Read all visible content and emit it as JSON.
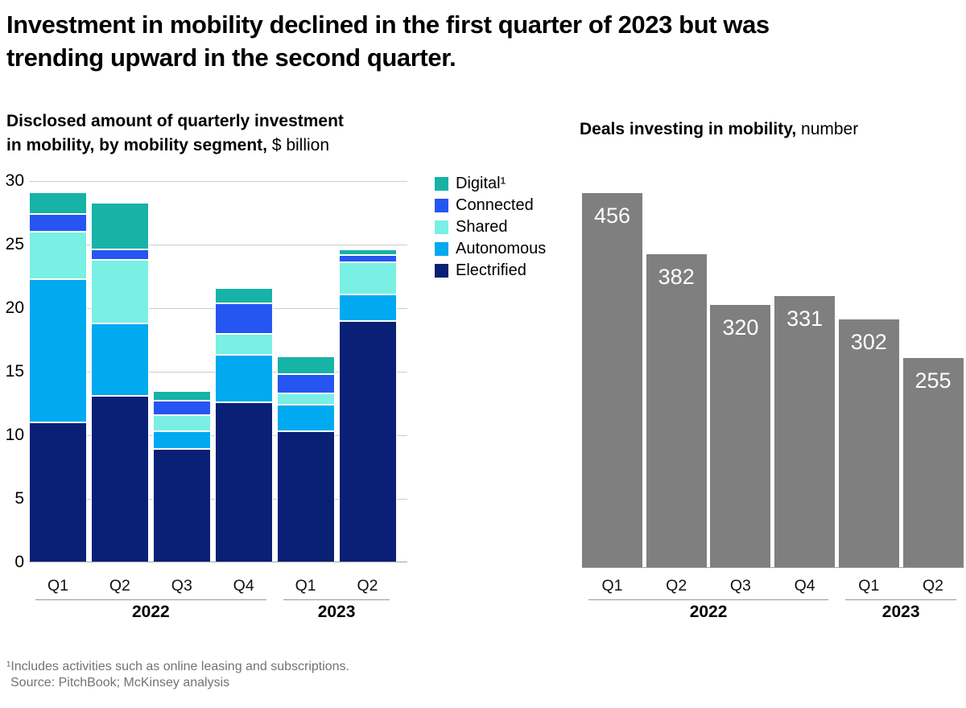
{
  "page": {
    "title_lines": [
      "Investment in mobility declined in the first quarter of 2023 but was",
      "trending upward in the second quarter."
    ],
    "footnote": "¹Includes activities such as online leasing and subscriptions.",
    "source": "Source: PitchBook; McKinsey analysis"
  },
  "chart_data": [
    {
      "type": "stacked-bar",
      "title_lines": [
        "Disclosed amount of quarterly investment",
        "in mobility, by mobility segment,"
      ],
      "unit_label": "$ billion",
      "categories": [
        "Q1",
        "Q2",
        "Q3",
        "Q4",
        "Q1",
        "Q2"
      ],
      "year_groups": [
        {
          "label": "2022",
          "span": [
            0,
            3
          ]
        },
        {
          "label": "2023",
          "span": [
            4,
            5
          ]
        }
      ],
      "ylim": [
        0,
        30
      ],
      "yticks": [
        0,
        5,
        10,
        15,
        20,
        25,
        30
      ],
      "grid": true,
      "legend_position": "right",
      "series": [
        {
          "name": "Electrified",
          "color": "#0A2076",
          "values": [
            11.0,
            13.1,
            8.9,
            12.6,
            10.3,
            19.0
          ]
        },
        {
          "name": "Autonomous",
          "color": "#00A9F0",
          "values": [
            11.3,
            5.7,
            1.4,
            3.7,
            2.1,
            2.1
          ]
        },
        {
          "name": "Shared",
          "color": "#7AEFE4",
          "values": [
            3.7,
            5.0,
            1.3,
            1.7,
            0.9,
            2.5
          ]
        },
        {
          "name": "Connected",
          "color": "#2656F2",
          "values": [
            1.4,
            0.8,
            1.1,
            2.4,
            1.5,
            0.6
          ]
        },
        {
          "name": "Digital",
          "color": "#16B3A6",
          "values": [
            1.7,
            3.7,
            0.8,
            1.2,
            1.4,
            0.4
          ]
        }
      ],
      "legend": [
        {
          "series": "Digital",
          "label": "Digital¹"
        },
        {
          "series": "Connected",
          "label": "Connected"
        },
        {
          "series": "Shared",
          "label": "Shared"
        },
        {
          "series": "Autonomous",
          "label": "Autonomous"
        },
        {
          "series": "Electrified",
          "label": "Electrified"
        }
      ]
    },
    {
      "type": "bar",
      "title_bold": "Deals investing in mobility,",
      "unit_label": "number",
      "categories": [
        "Q1",
        "Q2",
        "Q3",
        "Q4",
        "Q1",
        "Q2"
      ],
      "year_groups": [
        {
          "label": "2022",
          "span": [
            0,
            3
          ]
        },
        {
          "label": "2023",
          "span": [
            4,
            5
          ]
        }
      ],
      "values": [
        456,
        382,
        320,
        331,
        302,
        255
      ],
      "bar_color": "#7F7F7F",
      "value_label_color": "#FFFFFF",
      "grid": false
    }
  ]
}
